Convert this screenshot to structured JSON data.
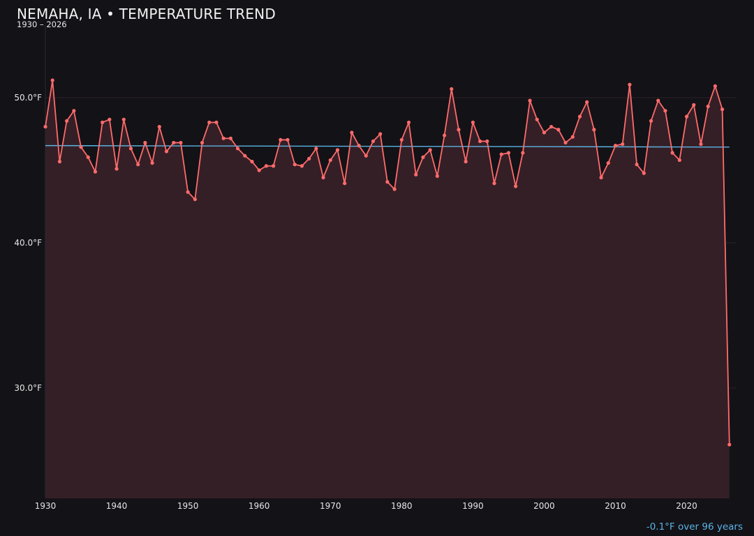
{
  "header": {
    "title": "NEMAHA, IA • TEMPERATURE TREND",
    "subtitle": "1930 – 2026"
  },
  "footer": {
    "summary": "-0.1°F over 96 years"
  },
  "colors": {
    "background": "#131217",
    "line": "#ff6b6b",
    "fill": "#351f26",
    "trend": "#5ab4e5",
    "grid": "#2a2327"
  },
  "chart_data": {
    "type": "line",
    "title": "NEMAHA, IA • TEMPERATURE TREND",
    "subtitle": "1930 – 2026",
    "xlabel": "",
    "ylabel": "",
    "xlim": [
      1930,
      2027
    ],
    "ylim": [
      22.4,
      55
    ],
    "grid": true,
    "x_ticks": [
      1930,
      1940,
      1950,
      1960,
      1970,
      1980,
      1990,
      2000,
      2010,
      2020
    ],
    "x_tick_labels": [
      "1930",
      "1940",
      "1950",
      "1960",
      "1970",
      "1980",
      "1990",
      "2000",
      "2010",
      "2020"
    ],
    "y_ticks": [
      30,
      40,
      50
    ],
    "y_tick_labels": [
      "30.0°F",
      "40.0°F",
      "50.0°F"
    ],
    "trend_line": {
      "x": [
        1930,
        2026
      ],
      "y": [
        46.7,
        46.6
      ]
    },
    "annotation": "-0.1°F over 96 years",
    "series": [
      {
        "x": [
          1930,
          1931,
          1932,
          1933,
          1934,
          1935,
          1936,
          1937,
          1938,
          1939,
          1940,
          1941,
          1942,
          1943,
          1944,
          1945,
          1946,
          1947,
          1948,
          1949,
          1950,
          1951,
          1952,
          1953,
          1954,
          1955,
          1956,
          1957,
          1958,
          1959,
          1960,
          1961,
          1962,
          1963,
          1964,
          1965,
          1966,
          1967,
          1968,
          1969,
          1970,
          1971,
          1972,
          1973,
          1974,
          1975,
          1976,
          1977,
          1978,
          1979,
          1980,
          1981,
          1982,
          1983,
          1984,
          1985,
          1986,
          1987,
          1988,
          1989,
          1990,
          1991,
          1992,
          1993,
          1994,
          1995,
          1996,
          1997,
          1998,
          1999,
          2000,
          2001,
          2002,
          2003,
          2004,
          2005,
          2006,
          2007,
          2008,
          2009,
          2010,
          2011,
          2012,
          2013,
          2014,
          2015,
          2016,
          2017,
          2018,
          2019,
          2020,
          2021,
          2022,
          2023,
          2024,
          2025,
          2026
        ],
        "values": [
          48.0,
          51.2,
          45.6,
          48.4,
          49.1,
          46.6,
          45.9,
          44.9,
          48.3,
          48.5,
          45.1,
          48.5,
          46.5,
          45.4,
          46.9,
          45.5,
          48.0,
          46.3,
          46.9,
          46.9,
          43.5,
          43.0,
          46.9,
          48.3,
          48.3,
          47.2,
          47.2,
          46.5,
          46.0,
          45.6,
          45.0,
          45.3,
          45.3,
          47.1,
          47.1,
          45.4,
          45.3,
          45.8,
          46.5,
          44.5,
          45.7,
          46.4,
          44.1,
          47.6,
          46.7,
          46.0,
          47.0,
          47.5,
          44.2,
          43.7,
          47.1,
          48.3,
          44.7,
          45.9,
          46.4,
          44.6,
          47.4,
          50.6,
          47.8,
          45.6,
          48.3,
          47.0,
          47.0,
          44.1,
          46.1,
          46.2,
          43.9,
          46.2,
          49.8,
          48.5,
          47.6,
          48.0,
          47.8,
          46.9,
          47.3,
          48.7,
          49.7,
          47.8,
          44.5,
          45.5,
          46.7,
          46.8,
          50.9,
          45.4,
          44.8,
          48.4,
          49.8,
          49.1,
          46.2,
          45.7,
          48.7,
          49.5,
          46.8,
          49.4,
          50.8,
          49.2,
          26.1
        ]
      }
    ]
  }
}
